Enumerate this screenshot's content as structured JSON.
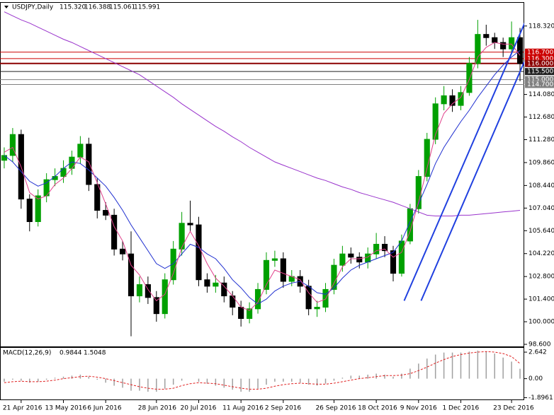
{
  "chart_data": [
    {
      "type": "candlestick",
      "title": "USDJPY,Daily",
      "quote": [
        "115.320",
        "116.388",
        "115.061",
        "115.991"
      ],
      "categories": [
        null,
        null,
        "21 Apr 2016",
        null,
        null,
        null,
        null,
        "13 May 2016",
        null,
        null,
        null,
        null,
        "6 Jun 2016",
        null,
        null,
        null,
        null,
        null,
        "28 Jun 2016",
        null,
        null,
        null,
        null,
        "20 Jul 2016",
        null,
        null,
        null,
        null,
        "11 Aug 2016",
        null,
        null,
        null,
        null,
        "2 Sep 2016",
        null,
        null,
        null,
        null,
        null,
        "26 Sep 2016",
        null,
        null,
        null,
        null,
        "18 Oct 2016",
        null,
        null,
        null,
        null,
        "9 Nov 2016",
        null,
        null,
        null,
        null,
        "1 Dec 2016",
        null,
        null,
        null,
        null,
        null,
        "23 Dec 2016",
        null
      ],
      "open": [
        110.0,
        110.3,
        111.6,
        107.6,
        106.2,
        107.8,
        108.8,
        109.0,
        109.5,
        110.2,
        111.0,
        108.5,
        106.9,
        106.6,
        104.5,
        104.2,
        101.6,
        102.3,
        101.5,
        100.5,
        102.6,
        104.5,
        106.1,
        106.0,
        102.6,
        102.2,
        102.4,
        101.6,
        100.9,
        100.2,
        100.8,
        102.0,
        103.8,
        103.9,
        102.5,
        102.8,
        102.2,
        100.8,
        100.9,
        102.0,
        103.5,
        104.2,
        104.0,
        103.7,
        104.2,
        104.8,
        104.4,
        103.0,
        105.0,
        107.0,
        109.0,
        111.3,
        113.5,
        114.0,
        113.4,
        114.2,
        116.0,
        117.8,
        117.6,
        117.3,
        116.9,
        117.6
      ],
      "high": [
        110.8,
        112.0,
        111.9,
        107.9,
        108.2,
        109.2,
        109.5,
        110.0,
        110.6,
        111.5,
        111.4,
        108.9,
        107.4,
        107.0,
        105.0,
        105.6,
        102.8,
        102.8,
        101.9,
        103.0,
        105.0,
        106.8,
        107.5,
        106.5,
        103.0,
        102.9,
        102.8,
        101.9,
        101.3,
        101.2,
        102.4,
        104.3,
        104.4,
        104.3,
        103.2,
        103.2,
        102.6,
        101.3,
        102.4,
        103.9,
        104.7,
        104.6,
        104.3,
        104.6,
        105.5,
        105.3,
        104.7,
        105.4,
        107.3,
        109.4,
        111.7,
        113.9,
        114.6,
        114.4,
        114.6,
        116.4,
        118.7,
        118.4,
        117.9,
        117.6,
        118.6,
        118.2
      ],
      "low": [
        109.5,
        109.9,
        107.0,
        105.6,
        105.9,
        107.4,
        108.4,
        108.6,
        109.1,
        109.8,
        108.1,
        106.4,
        106.3,
        104.1,
        103.8,
        99.1,
        101.2,
        101.1,
        100.0,
        100.2,
        102.3,
        104.1,
        105.6,
        102.2,
        101.8,
        101.8,
        101.2,
        100.4,
        99.7,
        99.9,
        100.5,
        101.7,
        103.4,
        102.1,
        102.2,
        101.8,
        100.4,
        100.3,
        100.6,
        101.7,
        103.1,
        103.6,
        103.3,
        103.3,
        103.9,
        104.0,
        102.5,
        102.8,
        104.8,
        106.7,
        108.7,
        111.0,
        113.1,
        113.0,
        113.1,
        114.0,
        115.7,
        117.1,
        116.9,
        116.4,
        116.6,
        114.9
      ],
      "close": [
        110.3,
        111.6,
        107.6,
        106.2,
        107.8,
        108.8,
        109.0,
        109.5,
        110.2,
        111.0,
        108.5,
        106.9,
        106.6,
        104.5,
        104.2,
        101.6,
        102.3,
        101.5,
        100.5,
        102.6,
        104.5,
        106.1,
        106.0,
        102.6,
        102.2,
        102.4,
        101.6,
        100.9,
        100.2,
        100.8,
        102.0,
        103.8,
        103.9,
        102.5,
        102.8,
        102.2,
        100.8,
        100.9,
        102.0,
        103.5,
        104.2,
        104.0,
        103.7,
        104.2,
        104.8,
        104.4,
        103.0,
        105.0,
        107.0,
        109.0,
        111.3,
        113.5,
        114.0,
        113.4,
        114.2,
        116.0,
        117.8,
        117.6,
        117.3,
        116.9,
        117.6,
        115.991
      ],
      "up_color": "#00a000",
      "down_color": "#000000",
      "series": [
        {
          "color": "#9933cc",
          "values": [
            119.2,
            118.95,
            118.7,
            118.5,
            118.25,
            118.0,
            117.75,
            117.5,
            117.3,
            117.05,
            116.8,
            116.55,
            116.3,
            116.05,
            115.8,
            115.55,
            115.3,
            114.95,
            114.6,
            114.25,
            113.9,
            113.5,
            113.15,
            112.8,
            112.45,
            112.1,
            111.8,
            111.45,
            111.15,
            110.8,
            110.5,
            110.2,
            109.9,
            109.7,
            109.5,
            109.3,
            109.1,
            108.9,
            108.75,
            108.55,
            108.35,
            108.2,
            108.0,
            107.85,
            107.7,
            107.55,
            107.4,
            107.2,
            107.0,
            106.8,
            106.6,
            106.55,
            106.55,
            106.55,
            106.6,
            106.6,
            106.65,
            106.7,
            106.75,
            106.8,
            106.85,
            106.9
          ]
        },
        {
          "color": "#2030d0",
          "values": [
            110.3,
            109.9,
            109.3,
            108.7,
            108.4,
            108.6,
            109.0,
            109.5,
            109.9,
            109.8,
            109.4,
            108.9,
            108.4,
            107.7,
            106.9,
            106.0,
            105.2,
            104.4,
            103.6,
            103.3,
            103.6,
            104.2,
            104.8,
            104.6,
            104.2,
            103.9,
            103.3,
            102.6,
            102.1,
            101.5,
            101.1,
            101.4,
            101.9,
            102.2,
            102.4,
            102.5,
            102.2,
            101.8,
            101.7,
            102.1,
            102.7,
            103.2,
            103.5,
            103.7,
            103.9,
            104.1,
            104.3,
            105.0,
            106.2,
            107.3,
            108.5,
            109.8,
            110.8,
            111.6,
            112.4,
            113.1,
            113.9,
            114.6,
            115.3,
            115.9,
            116.4,
            116.8
          ]
        },
        {
          "color": "#e0408a",
          "values": [
            110.5,
            110.8,
            109.6,
            108.0,
            107.6,
            107.8,
            108.5,
            108.9,
            109.5,
            110.2,
            109.9,
            108.6,
            107.3,
            105.9,
            105.0,
            103.5,
            102.9,
            102.0,
            101.3,
            101.7,
            103.0,
            104.6,
            105.6,
            104.7,
            103.6,
            102.7,
            102.2,
            101.6,
            100.9,
            100.7,
            101.2,
            102.3,
            103.2,
            103.0,
            102.8,
            102.6,
            101.8,
            101.2,
            101.4,
            102.4,
            103.4,
            103.9,
            103.9,
            104.0,
            104.4,
            104.5,
            104.0,
            104.3,
            105.6,
            107.4,
            109.5,
            111.6,
            112.9,
            113.5,
            113.9,
            115.0,
            116.4,
            117.0,
            117.3,
            117.2,
            117.2,
            116.5
          ]
        }
      ],
      "trendlines": [
        {
          "color": "#2040e0",
          "x": [
            47.3,
            61.9
          ],
          "values": [
            101.3,
            118.93
          ]
        },
        {
          "color": "#2040e0",
          "x": [
            49.3,
            61.5
          ],
          "values": [
            101.3,
            116.1
          ]
        }
      ],
      "levels": [
        {
          "value": 116.7,
          "label": "116.700",
          "color": "#cc0000"
        },
        {
          "value": 116.3,
          "label": "116.300",
          "color": "#cc0000"
        },
        {
          "value": 116.0,
          "label": "116.000",
          "color": "#8b0000"
        },
        {
          "value": 115.5,
          "label": "115.500",
          "color": "#202020"
        },
        {
          "value": 115.0,
          "label": "115.000",
          "color": "#808080"
        },
        {
          "value": 114.7,
          "label": "114.700",
          "color": "#808080"
        }
      ],
      "ylim": [
        98.47,
        119.8
      ],
      "yticks": [
        {
          "value": 118.32,
          "label": "118.320"
        },
        {
          "value": 114.08,
          "label": "114.080"
        },
        {
          "value": 112.68,
          "label": "112.680"
        },
        {
          "value": 111.28,
          "label": "111.280"
        },
        {
          "value": 109.86,
          "label": "109.860"
        },
        {
          "value": 108.44,
          "label": "108.440"
        },
        {
          "value": 107.04,
          "label": "107.040"
        },
        {
          "value": 105.64,
          "label": "105.640"
        },
        {
          "value": 104.22,
          "label": "104.220"
        },
        {
          "value": 102.8,
          "label": "102.800"
        },
        {
          "value": 101.4,
          "label": "101.400"
        },
        {
          "value": 100,
          "label": "100.000"
        },
        {
          "value": 98.6,
          "label": "98.600"
        }
      ]
    },
    {
      "type": "macd",
      "title": "MACD(12,26,9)",
      "quote": [
        "0.9844",
        "1.5048"
      ],
      "histogram_color": "#a0a0a0",
      "signal_color": "#e02020",
      "values": [
        -0.3,
        -0.1,
        -0.2,
        -0.4,
        -0.3,
        -0.1,
        0.1,
        0.2,
        0.3,
        0.4,
        0.2,
        -0.1,
        -0.4,
        -0.7,
        -0.9,
        -1.2,
        -1.2,
        -1.3,
        -1.3,
        -1.0,
        -0.6,
        -0.2,
        0.0,
        -0.3,
        -0.5,
        -0.7,
        -0.9,
        -1.1,
        -1.3,
        -1.3,
        -1.0,
        -0.6,
        -0.3,
        -0.3,
        -0.3,
        -0.4,
        -0.6,
        -0.7,
        -0.5,
        -0.2,
        0.1,
        0.3,
        0.3,
        0.4,
        0.5,
        0.4,
        0.2,
        0.5,
        1.0,
        1.5,
        2.0,
        2.4,
        2.6,
        2.6,
        2.6,
        2.7,
        2.8,
        2.7,
        2.5,
        2.1,
        1.7,
        0.9844
      ],
      "signal": [
        -0.4,
        -0.3,
        -0.25,
        -0.3,
        -0.3,
        -0.25,
        -0.15,
        0.0,
        0.1,
        0.2,
        0.25,
        0.15,
        0.0,
        -0.2,
        -0.4,
        -0.6,
        -0.8,
        -0.95,
        -1.05,
        -1.05,
        -0.95,
        -0.7,
        -0.5,
        -0.4,
        -0.45,
        -0.5,
        -0.65,
        -0.8,
        -0.95,
        -1.05,
        -1.05,
        -0.95,
        -0.75,
        -0.6,
        -0.5,
        -0.45,
        -0.5,
        -0.55,
        -0.55,
        -0.45,
        -0.3,
        -0.15,
        0.0,
        0.1,
        0.2,
        0.3,
        0.3,
        0.35,
        0.5,
        0.8,
        1.15,
        1.55,
        1.9,
        2.2,
        2.4,
        2.55,
        2.65,
        2.7,
        2.65,
        2.5,
        2.2,
        1.5048
      ],
      "ylim": [
        -2.14,
        3.07
      ],
      "yticks": [
        2.642,
        {
          "value": 0,
          "label": "0.00"
        },
        -1.8961
      ]
    }
  ]
}
